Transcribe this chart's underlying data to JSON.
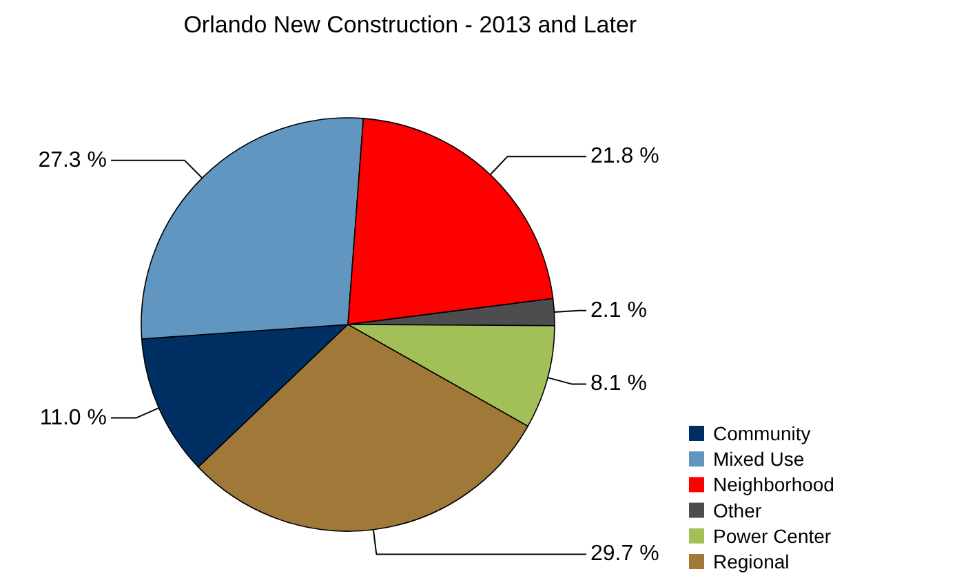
{
  "chart_data": {
    "type": "pie",
    "title": "Orlando  New Construction - 2013 and Later",
    "categories": [
      "Community",
      "Mixed Use",
      "Neighborhood",
      "Other",
      "Power Center",
      "Regional"
    ],
    "values": [
      11.0,
      27.3,
      21.8,
      2.1,
      8.1,
      29.7
    ],
    "colors": [
      "#002f63",
      "#6096c0",
      "#ff0000",
      "#4d4d4f",
      "#a2c057",
      "#a07838"
    ],
    "value_labels": [
      "11.0 %",
      "27.3 %",
      "21.8 %",
      "2.1 %",
      "8.1 %",
      "29.7 %"
    ],
    "legend": "bottom right"
  }
}
